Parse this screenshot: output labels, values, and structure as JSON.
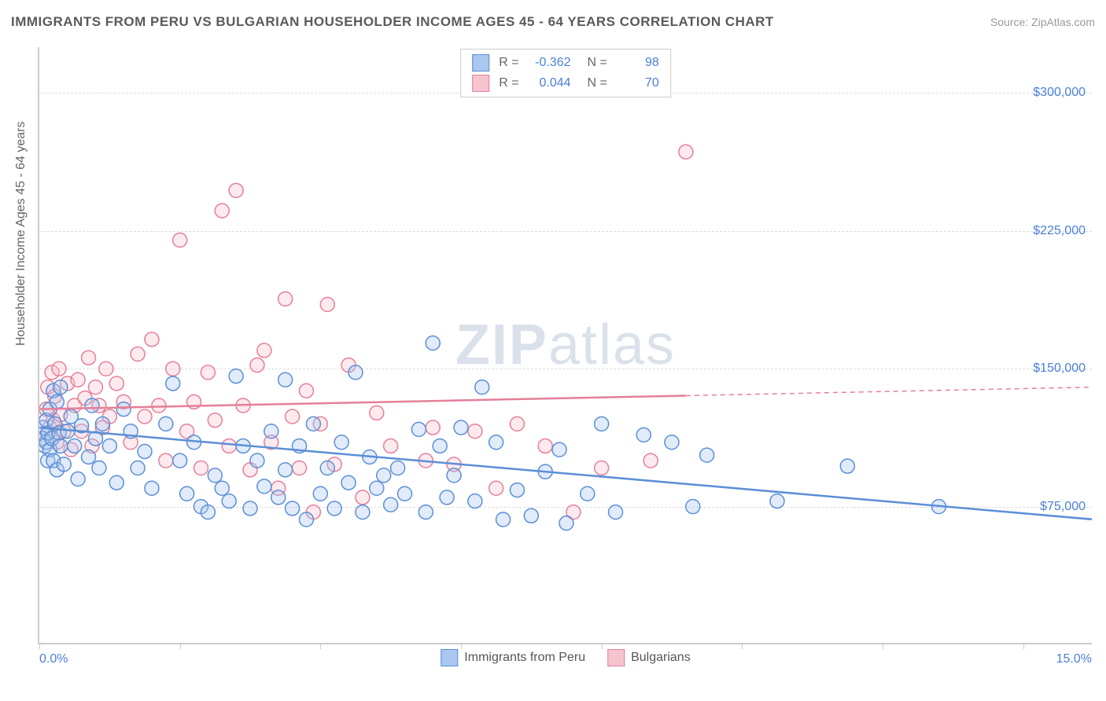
{
  "title": "IMMIGRANTS FROM PERU VS BULGARIAN HOUSEHOLDER INCOME AGES 45 - 64 YEARS CORRELATION CHART",
  "source": "Source: ZipAtlas.com",
  "watermark_a": "ZIP",
  "watermark_b": "atlas",
  "chart": {
    "type": "scatter",
    "ylabel": "Householder Income Ages 45 - 64 years",
    "xlim": [
      0,
      15
    ],
    "ylim": [
      0,
      325000
    ],
    "x_ticks_pct": [
      0,
      2,
      4,
      6,
      8,
      10,
      12,
      14
    ],
    "x_min_label": "0.0%",
    "x_max_label": "15.0%",
    "y_ticks": [
      75000,
      150000,
      225000,
      300000
    ],
    "y_tick_labels": [
      "$75,000",
      "$150,000",
      "$225,000",
      "$300,000"
    ],
    "grid_color": "#dddddd",
    "axis_color": "#cccccc",
    "background_color": "#ffffff",
    "marker_radius": 9,
    "series": [
      {
        "key": "peru",
        "label": "Immigrants from Peru",
        "color_fill": "#a9c7ef",
        "color_stroke": "#5b8fd6",
        "R": "-0.362",
        "N": "98",
        "trend": {
          "y_at_x0": 118000,
          "y_at_x15": 68000,
          "solid_to_x": 15
        },
        "points": [
          [
            0.05,
            118000
          ],
          [
            0.05,
            112000
          ],
          [
            0.08,
            108000
          ],
          [
            0.1,
            110000
          ],
          [
            0.1,
            122000
          ],
          [
            0.12,
            100000
          ],
          [
            0.12,
            115000
          ],
          [
            0.15,
            106000
          ],
          [
            0.15,
            128000
          ],
          [
            0.18,
            112000
          ],
          [
            0.2,
            100000
          ],
          [
            0.2,
            138000
          ],
          [
            0.22,
            120000
          ],
          [
            0.25,
            95000
          ],
          [
            0.25,
            132000
          ],
          [
            0.28,
            115000
          ],
          [
            0.3,
            108000
          ],
          [
            0.3,
            140000
          ],
          [
            0.35,
            98000
          ],
          [
            0.4,
            116000
          ],
          [
            0.45,
            124000
          ],
          [
            0.5,
            108000
          ],
          [
            0.55,
            90000
          ],
          [
            0.6,
            119000
          ],
          [
            0.7,
            102000
          ],
          [
            0.75,
            130000
          ],
          [
            0.8,
            112000
          ],
          [
            0.85,
            96000
          ],
          [
            0.9,
            120000
          ],
          [
            1.0,
            108000
          ],
          [
            1.1,
            88000
          ],
          [
            1.2,
            128000
          ],
          [
            1.3,
            116000
          ],
          [
            1.4,
            96000
          ],
          [
            1.5,
            105000
          ],
          [
            1.6,
            85000
          ],
          [
            1.8,
            120000
          ],
          [
            1.9,
            142000
          ],
          [
            2.0,
            100000
          ],
          [
            2.1,
            82000
          ],
          [
            2.2,
            110000
          ],
          [
            2.3,
            75000
          ],
          [
            2.4,
            72000
          ],
          [
            2.5,
            92000
          ],
          [
            2.6,
            85000
          ],
          [
            2.7,
            78000
          ],
          [
            2.8,
            146000
          ],
          [
            2.9,
            108000
          ],
          [
            3.0,
            74000
          ],
          [
            3.1,
            100000
          ],
          [
            3.2,
            86000
          ],
          [
            3.3,
            116000
          ],
          [
            3.4,
            80000
          ],
          [
            3.5,
            95000
          ],
          [
            3.6,
            74000
          ],
          [
            3.7,
            108000
          ],
          [
            3.8,
            68000
          ],
          [
            3.9,
            120000
          ],
          [
            4.0,
            82000
          ],
          [
            4.1,
            96000
          ],
          [
            4.2,
            74000
          ],
          [
            4.3,
            110000
          ],
          [
            4.4,
            88000
          ],
          [
            4.5,
            148000
          ],
          [
            4.6,
            72000
          ],
          [
            4.7,
            102000
          ],
          [
            4.8,
            85000
          ],
          [
            4.9,
            92000
          ],
          [
            5.0,
            76000
          ],
          [
            5.1,
            96000
          ],
          [
            5.2,
            82000
          ],
          [
            5.4,
            117000
          ],
          [
            5.5,
            72000
          ],
          [
            5.7,
            108000
          ],
          [
            5.8,
            80000
          ],
          [
            5.9,
            92000
          ],
          [
            6.0,
            118000
          ],
          [
            6.2,
            78000
          ],
          [
            6.3,
            140000
          ],
          [
            6.5,
            110000
          ],
          [
            6.6,
            68000
          ],
          [
            6.8,
            84000
          ],
          [
            7.0,
            70000
          ],
          [
            7.2,
            94000
          ],
          [
            7.4,
            106000
          ],
          [
            7.5,
            66000
          ],
          [
            7.8,
            82000
          ],
          [
            8.0,
            120000
          ],
          [
            8.2,
            72000
          ],
          [
            8.6,
            114000
          ],
          [
            9.0,
            110000
          ],
          [
            9.3,
            75000
          ],
          [
            9.5,
            103000
          ],
          [
            10.5,
            78000
          ],
          [
            11.5,
            97000
          ],
          [
            12.8,
            75000
          ],
          [
            5.6,
            164000
          ],
          [
            3.5,
            144000
          ]
        ]
      },
      {
        "key": "bulg",
        "label": "Bulgarians",
        "color_fill": "#f5c4cf",
        "color_stroke": "#e57f99",
        "R": "0.044",
        "N": "70",
        "trend": {
          "y_at_x0": 128000,
          "y_at_x15": 140000,
          "solid_to_x": 9.2
        },
        "points": [
          [
            0.1,
            128000
          ],
          [
            0.12,
            140000
          ],
          [
            0.15,
            118000
          ],
          [
            0.18,
            148000
          ],
          [
            0.2,
            122000
          ],
          [
            0.22,
            135000
          ],
          [
            0.25,
            110000
          ],
          [
            0.28,
            150000
          ],
          [
            0.3,
            125000
          ],
          [
            0.35,
            116000
          ],
          [
            0.4,
            142000
          ],
          [
            0.45,
            106000
          ],
          [
            0.5,
            130000
          ],
          [
            0.55,
            144000
          ],
          [
            0.6,
            116000
          ],
          [
            0.65,
            134000
          ],
          [
            0.7,
            156000
          ],
          [
            0.75,
            108000
          ],
          [
            0.8,
            140000
          ],
          [
            0.85,
            130000
          ],
          [
            0.9,
            118000
          ],
          [
            0.95,
            150000
          ],
          [
            1.0,
            124000
          ],
          [
            1.1,
            142000
          ],
          [
            1.2,
            132000
          ],
          [
            1.3,
            110000
          ],
          [
            1.4,
            158000
          ],
          [
            1.5,
            124000
          ],
          [
            1.6,
            166000
          ],
          [
            1.7,
            130000
          ],
          [
            1.8,
            100000
          ],
          [
            1.9,
            150000
          ],
          [
            2.0,
            220000
          ],
          [
            2.1,
            116000
          ],
          [
            2.2,
            132000
          ],
          [
            2.3,
            96000
          ],
          [
            2.4,
            148000
          ],
          [
            2.5,
            122000
          ],
          [
            2.6,
            236000
          ],
          [
            2.7,
            108000
          ],
          [
            2.8,
            247000
          ],
          [
            2.9,
            130000
          ],
          [
            3.0,
            95000
          ],
          [
            3.1,
            152000
          ],
          [
            3.2,
            160000
          ],
          [
            3.3,
            110000
          ],
          [
            3.4,
            85000
          ],
          [
            3.5,
            188000
          ],
          [
            3.6,
            124000
          ],
          [
            3.7,
            96000
          ],
          [
            3.8,
            138000
          ],
          [
            3.9,
            72000
          ],
          [
            4.0,
            120000
          ],
          [
            4.1,
            185000
          ],
          [
            4.2,
            98000
          ],
          [
            4.4,
            152000
          ],
          [
            4.6,
            80000
          ],
          [
            4.8,
            126000
          ],
          [
            5.0,
            108000
          ],
          [
            5.5,
            100000
          ],
          [
            5.6,
            118000
          ],
          [
            5.9,
            98000
          ],
          [
            6.2,
            116000
          ],
          [
            6.5,
            85000
          ],
          [
            6.8,
            120000
          ],
          [
            7.2,
            108000
          ],
          [
            7.6,
            72000
          ],
          [
            8.0,
            96000
          ],
          [
            8.7,
            100000
          ],
          [
            9.2,
            268000
          ]
        ]
      }
    ]
  }
}
